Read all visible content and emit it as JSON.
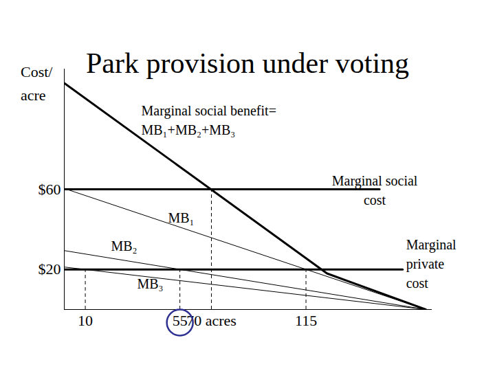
{
  "chart_data": {
    "type": "line",
    "title": "Park provision under voting",
    "ylabel": "Cost/\nacre",
    "xlim": [
      0,
      175
    ],
    "ylim": [
      0,
      120
    ],
    "xticks": [
      10,
      55,
      {
        "value": 70,
        "label": "70 acres"
      },
      115
    ],
    "yticks": [
      {
        "value": 20,
        "label": "$20"
      },
      {
        "value": 60,
        "label": "$60"
      }
    ],
    "grid": false,
    "series": [
      {
        "name": "Marginal social benefit=\nMB₁+MB₂+MB₃",
        "x": [
          0,
          125,
          172
        ],
        "values": [
          113,
          18,
          0
        ],
        "color": "#000000",
        "line_style": "thick"
      },
      {
        "name": "MB₁",
        "x": [
          0,
          172
        ],
        "values": [
          60.4,
          0
        ],
        "color": "#000000",
        "line_style": "thin"
      },
      {
        "name": "MB₂",
        "x": [
          0,
          172
        ],
        "values": [
          29.4,
          0
        ],
        "color": "#000000",
        "line_style": "thin"
      },
      {
        "name": "MB₃",
        "x": [
          0,
          172
        ],
        "values": [
          21.2,
          0
        ],
        "color": "#000000",
        "line_style": "thin"
      },
      {
        "name": "Marginal social\ncost",
        "x": [
          0,
          150
        ],
        "values": [
          60,
          60
        ],
        "color": "#000000",
        "line_style": "thick"
      },
      {
        "name": "Marginal\nprivate\ncost",
        "x": [
          0,
          161
        ],
        "values": [
          20,
          20
        ],
        "color": "#000000",
        "line_style": "thick"
      }
    ],
    "guides": {
      "x": [
        10,
        55,
        70,
        115
      ],
      "values": [
        20,
        20,
        60,
        20
      ],
      "color": "#000000",
      "line_style": "dashed"
    },
    "highlight": {
      "x": 55,
      "color": "#2e3192"
    }
  }
}
